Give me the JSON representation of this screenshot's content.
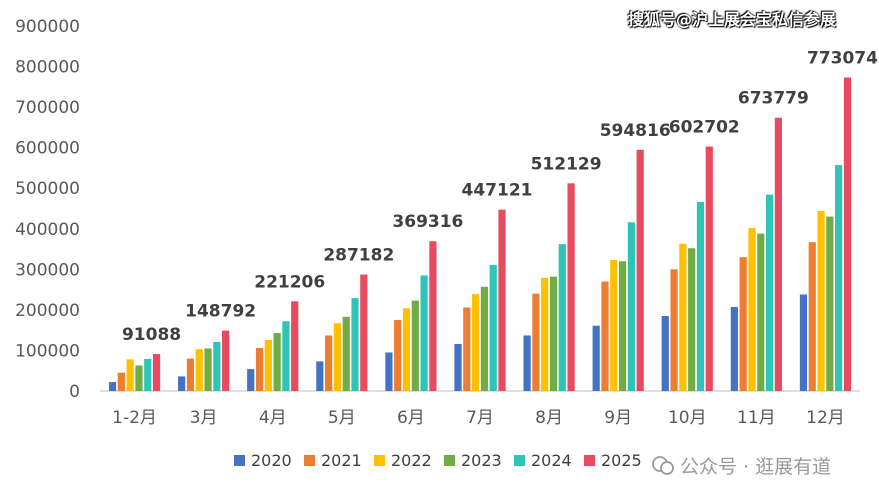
{
  "chart_data": {
    "type": "bar",
    "categories": [
      "1-2月",
      "3月",
      "4月",
      "5月",
      "6月",
      "7月",
      "8月",
      "9月",
      "10月",
      "11月",
      "12月"
    ],
    "series": [
      {
        "name": "2020",
        "color": "#4472C4",
        "values": [
          22000,
          36000,
          54000,
          73000,
          95000,
          116000,
          137000,
          161000,
          185000,
          207000,
          238000
        ]
      },
      {
        "name": "2021",
        "color": "#ED7D31",
        "values": [
          45000,
          80000,
          106000,
          137000,
          175000,
          206000,
          240000,
          270000,
          300000,
          330000,
          367000
        ]
      },
      {
        "name": "2022",
        "color": "#FFC000",
        "values": [
          78000,
          103000,
          126000,
          167000,
          204000,
          239000,
          279000,
          323000,
          363000,
          402000,
          444000
        ]
      },
      {
        "name": "2023",
        "color": "#70AD47",
        "values": [
          63000,
          105000,
          143000,
          183000,
          223000,
          257000,
          282000,
          320000,
          352000,
          388000,
          430000
        ]
      },
      {
        "name": "2024",
        "color": "#2EC4B6",
        "values": [
          79000,
          121000,
          172000,
          229000,
          285000,
          311000,
          362000,
          416000,
          466000,
          484000,
          557000
        ]
      },
      {
        "name": "2025",
        "color": "#E84A5F",
        "values": [
          91088,
          148792,
          221206,
          287182,
          369316,
          447121,
          512129,
          594816,
          602702,
          673779,
          773074
        ]
      }
    ],
    "data_labels": {
      "series": "2025",
      "labels": [
        "91088",
        "148792",
        "221206",
        "287182",
        "369316",
        "447121",
        "512129",
        "594816",
        "602702",
        "673779",
        "773074"
      ]
    },
    "y_ticks": [
      "0",
      "100000",
      "200000",
      "300000",
      "400000",
      "500000",
      "600000",
      "700000",
      "800000",
      "900000"
    ],
    "ylim": [
      0,
      900000
    ],
    "grid": false,
    "legend": "bottom",
    "axis_color": "#bfbfbf",
    "title": "",
    "xlabel": "",
    "ylabel": ""
  },
  "watermarks": {
    "top": "搜狐号@沪上展会宝私信参展",
    "bottom": "公众号 · 逛展有道"
  }
}
